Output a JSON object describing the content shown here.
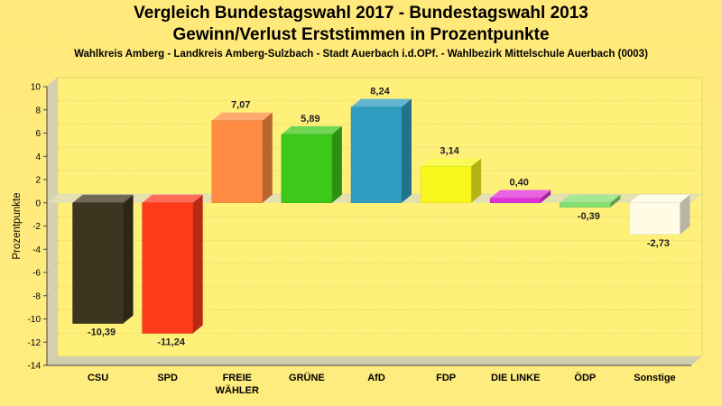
{
  "chart_data": {
    "type": "bar",
    "title": "Vergleich Bundestagswahl 2017 - Bundestagswahl 2013",
    "subtitle": "Gewinn/Verlust Erststimmen in Prozentpunkte",
    "subtitle2": "Wahlkreis Amberg - Landkreis Amberg-Sulzbach - Stadt Auerbach i.d.OPf. - Wahlbezirk Mittelschule Auerbach (0003)",
    "ylabel": "Prozentpunkte",
    "xlabel": "",
    "ylim": [
      -14,
      10
    ],
    "yticks": [
      10,
      8,
      6,
      4,
      2,
      0,
      -2,
      -4,
      -6,
      -8,
      -10,
      -12,
      -14
    ],
    "ytick_labels": [
      "10",
      "8",
      "6",
      "4",
      "2",
      "0",
      "-2",
      "-4",
      "-6",
      "-8",
      "-10",
      "-12",
      "-14"
    ],
    "grid": true,
    "categories": [
      {
        "lines": [
          "CSU"
        ]
      },
      {
        "lines": [
          "SPD"
        ]
      },
      {
        "lines": [
          "FREIE",
          "WÄHLER"
        ]
      },
      {
        "lines": [
          "GRÜNE"
        ]
      },
      {
        "lines": [
          "AfD"
        ]
      },
      {
        "lines": [
          "FDP"
        ]
      },
      {
        "lines": [
          "DIE LINKE"
        ]
      },
      {
        "lines": [
          "ÖDP"
        ]
      },
      {
        "lines": [
          "Sonstige"
        ]
      }
    ],
    "values": [
      -10.39,
      -11.24,
      7.07,
      5.89,
      8.24,
      3.14,
      0.4,
      -0.39,
      -2.73
    ],
    "value_labels": [
      "-10,39",
      "-11,24",
      "7,07",
      "5,89",
      "8,24",
      "3,14",
      "0,40",
      "-0,39",
      "-2,73"
    ],
    "colors": [
      "#3d3520",
      "#ff3b1c",
      "#ff8c42",
      "#3ec81a",
      "#2e9ec0",
      "#f8f81e",
      "#e030d8",
      "#86e070",
      "#fffbe4"
    ]
  }
}
